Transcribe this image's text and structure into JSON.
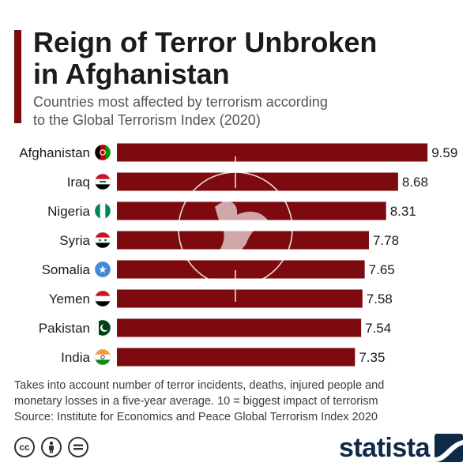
{
  "header": {
    "title_line1": "Reign of Terror Unbroken",
    "title_line2": "in Afghanistan",
    "subtitle_line1": "Countries most affected by terrorism according",
    "subtitle_line2": "to the Global Terrorism Index (2020)"
  },
  "chart_data": {
    "type": "bar",
    "orientation": "horizontal",
    "categories": [
      "Afghanistan",
      "Iraq",
      "Nigeria",
      "Syria",
      "Somalia",
      "Yemen",
      "Pakistan",
      "India"
    ],
    "values": [
      9.59,
      8.68,
      8.31,
      7.78,
      7.65,
      7.58,
      7.54,
      7.35
    ],
    "value_labels": [
      "9.59",
      "8.68",
      "8.31",
      "7.78",
      "7.65",
      "7.58",
      "7.54",
      "7.35"
    ],
    "flags": [
      "afghanistan-flag-icon",
      "iraq-flag-icon",
      "nigeria-flag-icon",
      "syria-flag-icon",
      "somalia-flag-icon",
      "yemen-flag-icon",
      "pakistan-flag-icon",
      "india-flag-icon"
    ],
    "xlim": [
      0,
      10
    ],
    "grid": false,
    "bar_color": "#7d0a0f",
    "background_decoration": "dove-crosshair-icon"
  },
  "footer": {
    "note_line1": "Takes into account number of terror incidents, deaths, injured people and",
    "note_line2": "monetary losses in a five-year average. 10 = biggest impact of terrorism",
    "source": "Source: Institute for Economics and Peace Global Terrorism Index 2020",
    "license_icons": [
      "cc-icon",
      "attribution-icon",
      "no-derivatives-icon"
    ],
    "brand": "statista"
  },
  "colors": {
    "accent": "#7d0a0f",
    "brand": "#0e2a47",
    "text": "#1b1b1b",
    "subtitle": "#555555"
  }
}
